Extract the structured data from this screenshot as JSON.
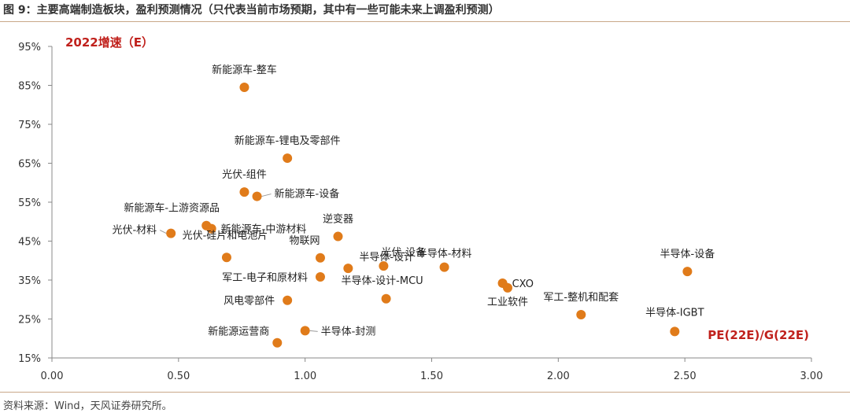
{
  "figure": {
    "title": "图 9：主要高端制造板块，盈利预测情况（只代表当前市场预期，其中有一些可能未来上调盈利预测）",
    "source": "资料来源：Wind，天风证券研究所。"
  },
  "chart_data": {
    "type": "scatter",
    "title": "",
    "xlabel": "PE(22E)/G(22E)",
    "ylabel": "2022增速（E）",
    "xlim": [
      0,
      3
    ],
    "ylim": [
      15,
      95
    ],
    "x_ticks": [
      "0.00",
      "0.50",
      "1.00",
      "1.50",
      "2.00",
      "2.50",
      "3.00"
    ],
    "y_ticks": [
      "15%",
      "25%",
      "35%",
      "45%",
      "55%",
      "65%",
      "75%",
      "85%",
      "95%"
    ],
    "grid": false,
    "point_color": "#e07b1a",
    "accent_color": "#c0211c",
    "points": [
      {
        "label": "新能源车-整车",
        "x": 0.76,
        "y": 84.5
      },
      {
        "label": "新能源车-锂电及零部件",
        "x": 0.93,
        "y": 66.3
      },
      {
        "label": "光伏-组件",
        "x": 0.76,
        "y": 57.6
      },
      {
        "label": "新能源车-设备",
        "x": 0.81,
        "y": 56.5
      },
      {
        "label": "新能源车-上游资源品",
        "x": 0.61,
        "y": 49.0
      },
      {
        "label": "新能源车-中游材料",
        "x": 0.63,
        "y": 48.2
      },
      {
        "label": "光伏-材料",
        "x": 0.47,
        "y": 47.0
      },
      {
        "label": "逆变器",
        "x": 1.13,
        "y": 46.2
      },
      {
        "label": "光伏-硅片和电池片",
        "x": 0.69,
        "y": 40.8
      },
      {
        "label": "物联网",
        "x": 1.06,
        "y": 40.7
      },
      {
        "label": "半导体-设计",
        "x": 1.17,
        "y": 38.0
      },
      {
        "label": "光伏-设备",
        "x": 1.31,
        "y": 38.6
      },
      {
        "label": "半导体-材料",
        "x": 1.55,
        "y": 38.3
      },
      {
        "label": "军工-电子和原材料",
        "x": 1.06,
        "y": 35.8
      },
      {
        "label": "CXO",
        "x": 1.78,
        "y": 34.2
      },
      {
        "label": "工业软件",
        "x": 1.8,
        "y": 33.0
      },
      {
        "label": "半导体-设备",
        "x": 2.51,
        "y": 37.2
      },
      {
        "label": "半导体-设计-MCU",
        "x": 1.32,
        "y": 30.2
      },
      {
        "label": "风电零部件",
        "x": 0.93,
        "y": 29.8
      },
      {
        "label": "军工-整机和配套",
        "x": 2.09,
        "y": 26.1
      },
      {
        "label": "半导体-IGBT",
        "x": 2.46,
        "y": 21.8
      },
      {
        "label": "半导体-封测",
        "x": 1.0,
        "y": 22.0
      },
      {
        "label": "新能源运营商",
        "x": 0.89,
        "y": 18.9
      }
    ]
  }
}
